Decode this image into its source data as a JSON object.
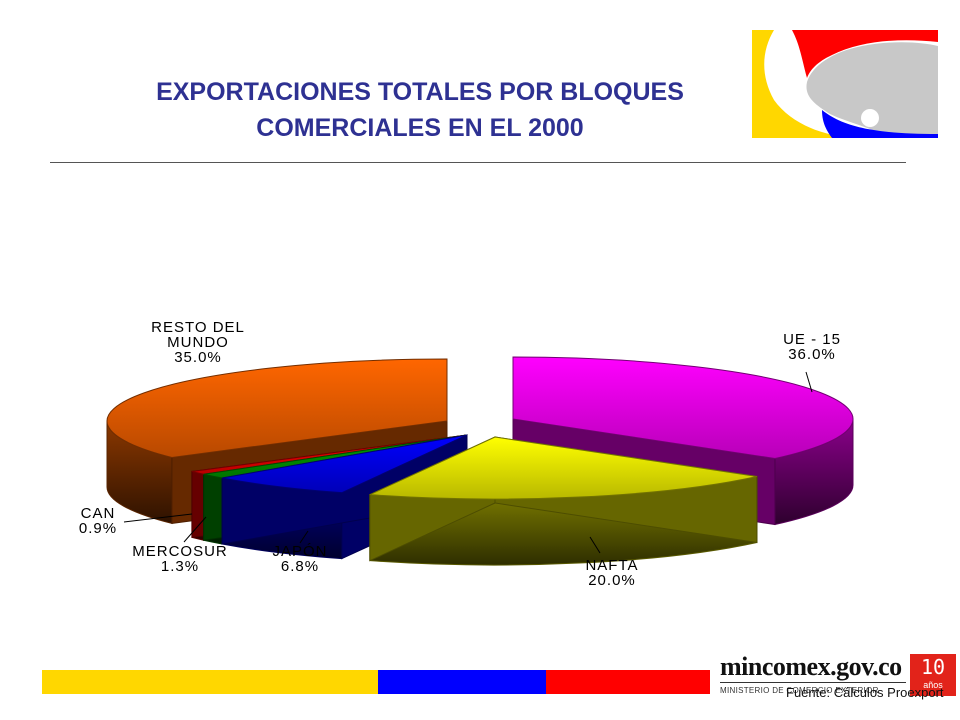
{
  "page": {
    "title_line1": "EXPORTACIONES TOTALES POR BLOQUES",
    "title_line2": "COMERCIALES EN EL 2000",
    "source": "Fuente: Cálculos Proexport",
    "brand": "mincomex.gov.co",
    "ministry": "MINISTERIO DE COMERCIO EXTERIOR",
    "anniversary_number": "10",
    "anniversary_word": "años",
    "logo_icon": "colombian-flag-swoosh-logo",
    "flag_colors": [
      "#FFD700",
      "#0000FF",
      "#FF0000"
    ]
  },
  "chart_data": {
    "type": "pie",
    "style": "3d-exploded",
    "title": "EXPORTACIONES TOTALES POR BLOQUES COMERCIALES EN EL 2000",
    "slices": [
      {
        "name": "UE - 15",
        "value": 36.0,
        "label_lines": [
          "UE - 15",
          "36.0%"
        ],
        "color": "#FF00FF"
      },
      {
        "name": "NAFTA",
        "value": 20.0,
        "label_lines": [
          "NAFTA",
          "20.0%"
        ],
        "color": "#FFFF00"
      },
      {
        "name": "JAPÓN",
        "value": 6.8,
        "label_lines": [
          "JAPÓN",
          "6.8%"
        ],
        "color": "#0000FF"
      },
      {
        "name": "MERCOSUR",
        "value": 1.3,
        "label_lines": [
          "MERCOSUR",
          "1.3%"
        ],
        "color": "#00A000"
      },
      {
        "name": "CAN",
        "value": 0.9,
        "label_lines": [
          "CAN",
          "0.9%"
        ],
        "color": "#FF0000"
      },
      {
        "name": "RESTO DEL MUNDO",
        "value": 35.0,
        "label_lines": [
          "RESTO DEL",
          "MUNDO",
          "35.0%"
        ],
        "color": "#FF6600"
      }
    ]
  }
}
